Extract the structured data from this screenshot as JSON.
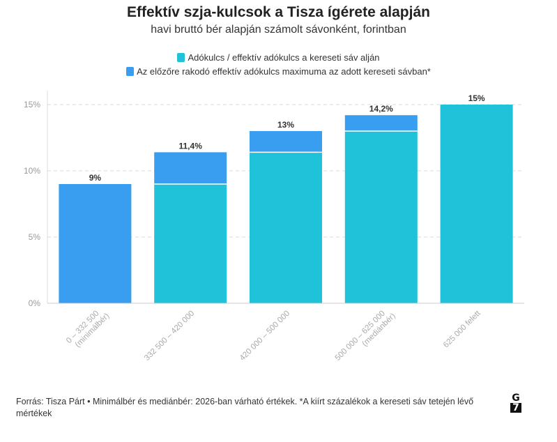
{
  "title": "Effektív szja-kulcsok a Tisza ígérete alapján",
  "subtitle": "havi bruttó bér alapján számolt sávonként, forintban",
  "legend": [
    {
      "label": "Adókulcs / effektív adókulcs a kereseti sáv alján",
      "color": "#1fc2d8"
    },
    {
      "label": "Az előzőre rakodó effektív adókulcs maximuma az adott kereseti sávban*",
      "color": "#3a9ef0"
    }
  ],
  "footer": "Forrás: Tisza Párt • Minimálbér és mediánbér: 2026-ban várható értékek. *A kiírt százalékok a kereseti sáv tetején lévő mértékek",
  "logo": {
    "line1": "G",
    "line2": "7"
  },
  "chart_data": {
    "type": "bar",
    "stacked": true,
    "categories": [
      "0 – 332 500\n(minimálbér)",
      "332 500 – 420 000",
      "420 000 – 500 000",
      "500 000 – 625 000\n(mediánbér)",
      "625 000 felett"
    ],
    "series": [
      {
        "name": "Adókulcs / effektív adókulcs a kereseti sáv alján",
        "color": "#1fc2d8",
        "values": [
          0,
          9,
          11.4,
          13,
          15
        ]
      },
      {
        "name": "Az előzőre rakodó effektív adókulcs maximuma az adott kereseti sávban*",
        "color": "#3a9ef0",
        "values": [
          9,
          2.4,
          1.6,
          1.2,
          0
        ]
      }
    ],
    "totals_labels": [
      "9%",
      "11,4%",
      "13%",
      "14,2%",
      "15%"
    ],
    "yticks": [
      "0%",
      "5%",
      "10%",
      "15%"
    ],
    "ytick_values": [
      0,
      5,
      10,
      15
    ],
    "ylim": [
      0,
      15.6
    ],
    "grid": true,
    "legend_position": "top-center"
  }
}
